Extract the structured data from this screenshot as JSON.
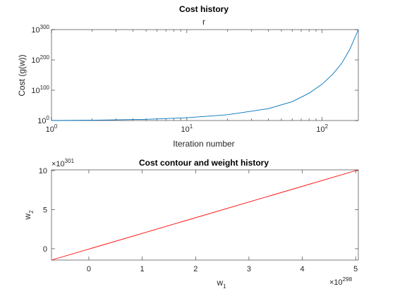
{
  "figure_title": "Cost history",
  "chart_data": [
    {
      "type": "line",
      "title": "r",
      "xlabel": "Iteration number",
      "ylabel": "Cost (g(w))",
      "xscale": "log",
      "yscale": "log",
      "xlim": [
        1,
        185
      ],
      "ylim": [
        1,
        1e+300
      ],
      "x_ticks": [
        1,
        10,
        100
      ],
      "x_tick_labels": [
        {
          "base": "10",
          "exp": "0"
        },
        {
          "base": "10",
          "exp": "1"
        },
        {
          "base": "10",
          "exp": "2"
        }
      ],
      "y_ticks_exp": [
        0,
        100,
        200,
        300
      ],
      "y_tick_labels": [
        {
          "base": "10",
          "exp": "0"
        },
        {
          "base": "10",
          "exp": "100"
        },
        {
          "base": "10",
          "exp": "200"
        },
        {
          "base": "10",
          "exp": "300"
        }
      ],
      "series": [
        {
          "color": "#0072BD",
          "x": [
            1,
            2,
            5,
            10,
            20,
            40,
            60,
            80,
            100,
            120,
            140,
            160,
            185
          ],
          "log10_y": [
            0,
            1,
            4,
            9,
            19,
            39,
            62,
            90,
            120,
            153,
            190,
            235,
            300
          ]
        }
      ]
    },
    {
      "type": "line",
      "title": "Cost contour and weight history",
      "xlabel": "w",
      "xlabel_sub": "1",
      "ylabel": "w",
      "ylabel_sub": "2",
      "xlim": [
        -0.7,
        5.05
      ],
      "ylim": [
        -1.45,
        10.1
      ],
      "x_ticks": [
        0,
        1,
        2,
        3,
        4,
        5
      ],
      "y_ticks": [
        0,
        5,
        10
      ],
      "x_multiplier": {
        "base": "×10",
        "exp": "298"
      },
      "y_multiplier": {
        "base": "×10",
        "exp": "301"
      },
      "series": [
        {
          "color": "#FF0000",
          "x": [
            -0.7,
            5.05
          ],
          "y": [
            -1.45,
            10.1
          ]
        }
      ]
    }
  ]
}
